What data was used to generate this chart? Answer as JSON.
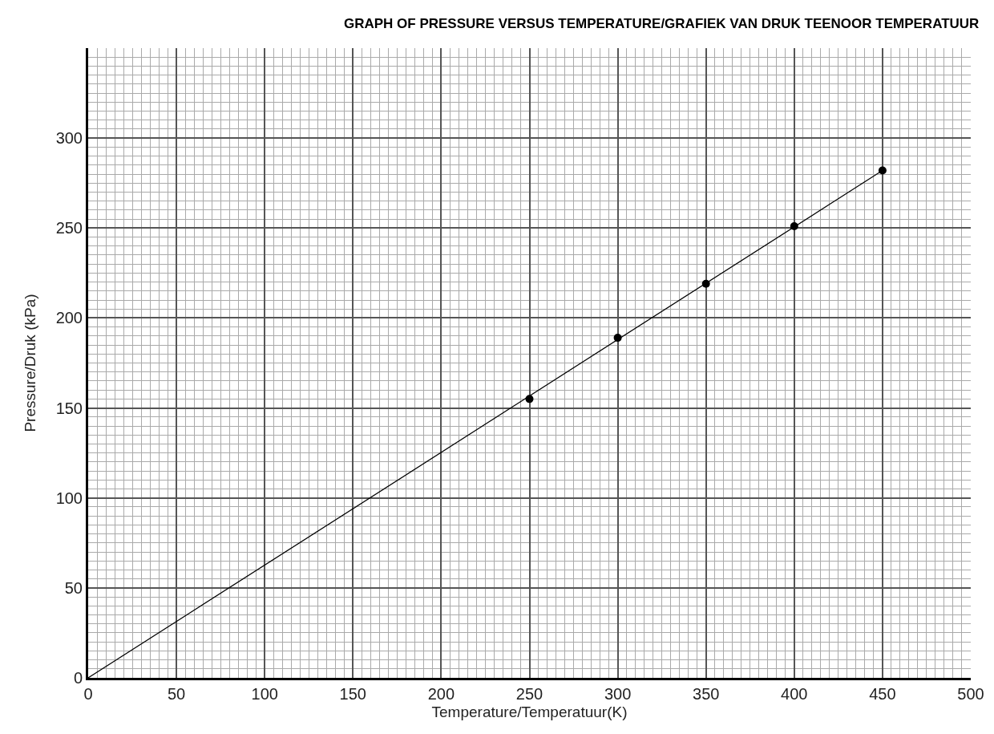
{
  "chart_data": {
    "type": "scatter",
    "title": "GRAPH OF PRESSURE VERSUS TEMPERATURE/GRAFIEK VAN DRUK TEENOOR TEMPERATUUR",
    "xlabel": "Temperature/Temperatuur(K)",
    "ylabel": "Pressure/Druk (kPa)",
    "x": [
      250,
      300,
      350,
      400,
      450
    ],
    "series": [
      {
        "color": "#000000",
        "marker": "circle",
        "values": [
          155,
          189,
          219,
          251,
          282
        ]
      },
      {
        "type": "line",
        "color": "#000000",
        "marker": "none",
        "line_style": "solid",
        "x": [
          0,
          450
        ],
        "values": [
          0,
          282
        ]
      }
    ],
    "xlim": [
      0,
      500
    ],
    "xticks": [
      0,
      50,
      100,
      150,
      200,
      250,
      300,
      350,
      400,
      450,
      500
    ],
    "ylim": [
      0,
      350
    ],
    "yticks": [
      0,
      50,
      100,
      150,
      200,
      250,
      300
    ],
    "grid": true
  }
}
